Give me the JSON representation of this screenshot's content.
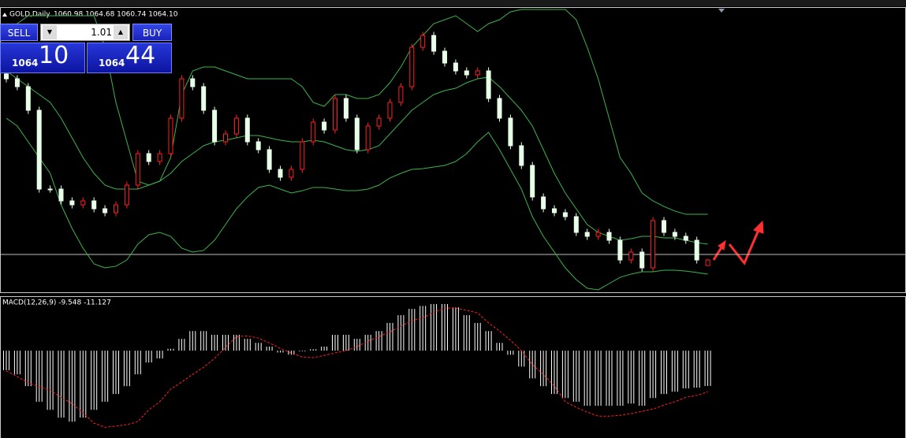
{
  "toolbar": {
    "symbol": "GOLD,Daily",
    "ohlc": "1060.98 1064.68 1060.74 1064.10"
  },
  "trade_panel": {
    "sell": "SELL",
    "buy": "BUY",
    "lot": "1.01",
    "sell_price": {
      "big": "1064",
      "pips": "10"
    },
    "buy_price": {
      "big": "1064",
      "pips": "44"
    }
  },
  "chart_data": {
    "type": "candlestick",
    "open": [
      1168.0,
      1165.3,
      1160.9,
      1147.7,
      1103.7,
      1103.7,
      1097.1,
      1094.9,
      1097.1,
      1092.7,
      1090.5,
      1094.9,
      1105.9,
      1123.5,
      1119.1,
      1123.5,
      1143.3,
      1165.3,
      1160.9,
      1147.7,
      1130.1,
      1134.5,
      1143.3,
      1130.1,
      1125.7,
      1114.7,
      1110.3,
      1114.7,
      1130.1,
      1141.1,
      1136.7,
      1154.3,
      1143.3,
      1125.7,
      1138.9,
      1143.3,
      1152.1,
      1160.9,
      1182.9,
      1189.5,
      1180.7,
      1174.1,
      1169.7,
      1167.5,
      1169.7,
      1154.3,
      1143.3,
      1127.9,
      1116.9,
      1099.3,
      1092.7,
      1090.5,
      1088.3,
      1079.5,
      1077.3,
      1079.5,
      1075.1,
      1064.1,
      1068.5,
      1059.7,
      1086.1,
      1079.5,
      1077.3,
      1075.1,
      1060.98
    ],
    "high": [
      1170.0,
      1167.3,
      1162.9,
      1149.7,
      1105.7,
      1105.7,
      1099.1,
      1099.1,
      1099.1,
      1094.7,
      1096.9,
      1107.9,
      1125.5,
      1125.5,
      1125.5,
      1145.3,
      1167.3,
      1167.3,
      1162.9,
      1149.7,
      1136.5,
      1145.3,
      1145.3,
      1132.1,
      1127.7,
      1116.7,
      1116.7,
      1132.1,
      1143.1,
      1143.1,
      1156.3,
      1156.3,
      1145.3,
      1140.9,
      1145.3,
      1154.1,
      1162.9,
      1184.9,
      1191.5,
      1191.5,
      1182.7,
      1176.1,
      1171.7,
      1171.7,
      1171.7,
      1156.3,
      1145.3,
      1129.9,
      1118.9,
      1101.3,
      1094.7,
      1092.5,
      1090.3,
      1081.5,
      1081.5,
      1081.5,
      1077.1,
      1070.5,
      1070.5,
      1088.1,
      1088.1,
      1081.5,
      1079.3,
      1077.1,
      1064.68
    ],
    "low": [
      1163.3,
      1158.9,
      1145.7,
      1101.7,
      1101.7,
      1095.1,
      1092.9,
      1092.9,
      1090.7,
      1088.5,
      1088.5,
      1092.9,
      1103.9,
      1117.1,
      1117.1,
      1121.5,
      1141.3,
      1158.9,
      1145.7,
      1128.1,
      1128.1,
      1132.5,
      1128.1,
      1123.7,
      1112.7,
      1108.3,
      1108.3,
      1112.7,
      1128.1,
      1134.7,
      1134.7,
      1141.3,
      1123.7,
      1123.7,
      1136.9,
      1141.3,
      1150.1,
      1158.9,
      1180.9,
      1178.7,
      1172.1,
      1167.7,
      1165.5,
      1165.5,
      1152.3,
      1141.3,
      1125.9,
      1114.9,
      1097.3,
      1090.7,
      1088.5,
      1086.3,
      1077.5,
      1075.3,
      1075.3,
      1073.1,
      1062.1,
      1062.1,
      1057.7,
      1057.7,
      1077.5,
      1075.3,
      1073.1,
      1062.1,
      1060.74
    ],
    "close": [
      1165.3,
      1160.9,
      1147.7,
      1103.7,
      1103.7,
      1097.1,
      1094.9,
      1097.1,
      1092.7,
      1090.5,
      1094.9,
      1105.9,
      1123.5,
      1119.1,
      1123.5,
      1143.3,
      1165.3,
      1160.9,
      1147.7,
      1130.1,
      1134.5,
      1143.3,
      1130.1,
      1125.7,
      1114.7,
      1110.3,
      1114.7,
      1130.1,
      1141.1,
      1136.7,
      1154.3,
      1143.3,
      1125.7,
      1138.9,
      1143.3,
      1152.1,
      1160.9,
      1182.9,
      1189.5,
      1180.7,
      1174.1,
      1169.7,
      1167.5,
      1169.7,
      1154.3,
      1143.3,
      1127.9,
      1116.9,
      1099.3,
      1092.7,
      1090.5,
      1088.3,
      1079.5,
      1077.3,
      1079.5,
      1075.1,
      1064.1,
      1068.5,
      1059.7,
      1086.1,
      1079.5,
      1077.3,
      1075.1,
      1064.1,
      1064.1
    ],
    "ylim": [
      1046.5,
      1204.9
    ],
    "up_color": "#ff2020",
    "down_color": "#e8ffe8",
    "hline": 1067.2,
    "bands": {
      "color": "#3cb44b",
      "upper": [
        1191.7,
        1196.1,
        1200.5,
        1200.5,
        1200.5,
        1200.5,
        1200.5,
        1200.5,
        1200.5,
        1182.9,
        1152.1,
        1130.1,
        1108.1,
        1105.9,
        1108.1,
        1121.3,
        1156.5,
        1169.7,
        1171.9,
        1171.9,
        1169.7,
        1167.5,
        1165.3,
        1165.3,
        1165.3,
        1165.3,
        1165.3,
        1160.9,
        1152.1,
        1149.9,
        1156.5,
        1156.5,
        1154.3,
        1154.3,
        1156.5,
        1163.1,
        1171.9,
        1182.9,
        1189.5,
        1196.1,
        1198.3,
        1200.5,
        1196.1,
        1191.7,
        1196.1,
        1198.3,
        1202.7,
        1204.0,
        1204.0,
        1204.0,
        1204.0,
        1204.0,
        1198.3,
        1182.9,
        1165.3,
        1143.3,
        1121.3,
        1112.5,
        1101.5,
        1097.1,
        1094.0,
        1091.4,
        1089.6,
        1089.6,
        1089.6
      ],
      "middle": [
        1169.7,
        1165.3,
        1160.9,
        1156.5,
        1152.1,
        1143.3,
        1132.3,
        1121.3,
        1112.5,
        1105.9,
        1103.7,
        1103.7,
        1103.7,
        1105.9,
        1108.1,
        1112.5,
        1119.1,
        1123.5,
        1127.9,
        1130.1,
        1131.0,
        1132.3,
        1133.6,
        1133.6,
        1132.3,
        1131.0,
        1130.1,
        1130.1,
        1131.0,
        1130.1,
        1127.9,
        1125.7,
        1124.8,
        1125.7,
        1127.9,
        1134.5,
        1141.1,
        1147.7,
        1152.1,
        1156.5,
        1158.7,
        1160.0,
        1163.1,
        1165.3,
        1166.2,
        1160.9,
        1154.3,
        1147.7,
        1138.9,
        1125.7,
        1112.5,
        1101.5,
        1092.7,
        1083.9,
        1079.5,
        1077.3,
        1075.1,
        1076.0,
        1077.3,
        1077.3,
        1076.4,
        1076.4,
        1075.1,
        1073.8,
        1072.9
      ],
      "lower": [
        1143.3,
        1138.9,
        1130.1,
        1121.3,
        1112.5,
        1094.9,
        1081.7,
        1070.7,
        1061.9,
        1059.7,
        1060.6,
        1064.1,
        1072.9,
        1078.2,
        1079.5,
        1077.3,
        1070.7,
        1068.5,
        1069.4,
        1075.1,
        1083.9,
        1092.7,
        1099.3,
        1104.6,
        1105.9,
        1103.7,
        1101.5,
        1102.8,
        1104.6,
        1104.6,
        1103.7,
        1102.8,
        1102.8,
        1103.7,
        1105.9,
        1109.9,
        1112.5,
        1114.7,
        1115.1,
        1116.0,
        1116.9,
        1119.1,
        1123.5,
        1130.1,
        1135.4,
        1125.7,
        1114.7,
        1103.7,
        1088.3,
        1077.3,
        1068.5,
        1059.7,
        1053.1,
        1048.3,
        1047.4,
        1050.9,
        1054.4,
        1056.2,
        1057.5,
        1057.5,
        1058.4,
        1058.4,
        1057.9,
        1057.1,
        1056.2
      ]
    }
  },
  "macd": {
    "label": "MACD(12,26,9) -9.548 -11.127",
    "ylim": [
      -23.4,
      14.3
    ],
    "hist_color": "#ffffff",
    "signal_color": "#ff2020",
    "histogram": [
      -5.3,
      -6.4,
      -9.6,
      -13.8,
      -16,
      -18.1,
      -19.2,
      -18.1,
      -16,
      -13.8,
      -11.7,
      -9.6,
      -6.4,
      -3.2,
      -2.1,
      0.5,
      3.2,
      5.3,
      5.3,
      4.3,
      4.3,
      4.3,
      3.2,
      2.1,
      1.1,
      -0.5,
      -1.1,
      -0.2,
      0.4,
      1.1,
      4.3,
      4.3,
      3.2,
      4.3,
      5.3,
      7.5,
      9.6,
      11.3,
      12.1,
      12.6,
      12.6,
      11.7,
      9.6,
      7.5,
      5.3,
      2.1,
      -1.1,
      -4.3,
      -7.5,
      -9.6,
      -11.7,
      -12.8,
      -13.8,
      -14.9,
      -14.9,
      -14.9,
      -14.9,
      -14.3,
      -14.9,
      -12.8,
      -11.7,
      -11.1,
      -10.2,
      -10,
      -9.548
    ],
    "signal": [
      -5.5,
      -7.0,
      -8.7,
      -9.8,
      -10.7,
      -12.6,
      -14.3,
      -16.8,
      -19.6,
      -20.7,
      -20.4,
      -20,
      -19.2,
      -16,
      -13.8,
      -10.4,
      -8.5,
      -6.4,
      -4.5,
      -2.1,
      0.9,
      3.8,
      4.0,
      3.4,
      2.1,
      0.6,
      -0.6,
      -1.7,
      -1.9,
      -1.3,
      -0.6,
      0,
      1.1,
      2.6,
      3.8,
      5.1,
      6.6,
      8.1,
      8.9,
      10.4,
      11.5,
      11.5,
      10.9,
      10.2,
      7.5,
      5.3,
      2.8,
      0,
      -3.8,
      -6.4,
      -9.6,
      -13.8,
      -15.3,
      -16.6,
      -17.7,
      -17.7,
      -17.5,
      -17,
      -16.4,
      -15.8,
      -14.7,
      -13.8,
      -12.6,
      -12.1,
      -11.127
    ]
  }
}
